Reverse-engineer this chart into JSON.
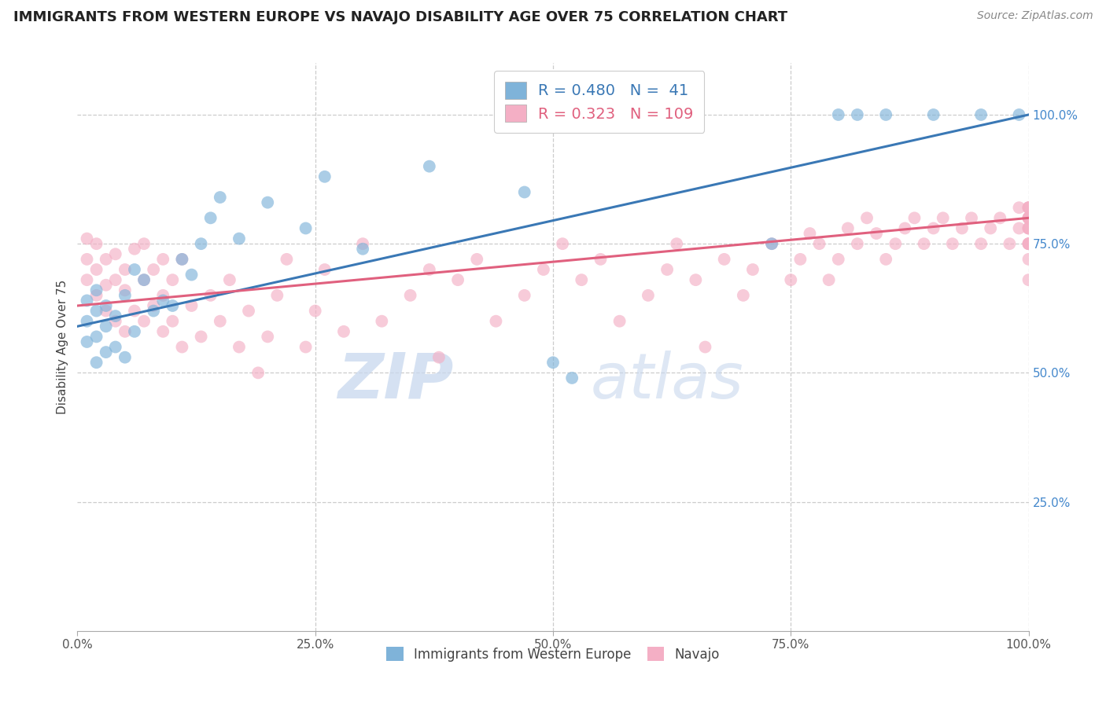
{
  "title": "IMMIGRANTS FROM WESTERN EUROPE VS NAVAJO DISABILITY AGE OVER 75 CORRELATION CHART",
  "source_text": "Source: ZipAtlas.com",
  "ylabel": "Disability Age Over 75",
  "xlim": [
    0,
    100
  ],
  "ylim": [
    0,
    110
  ],
  "xtick_labels": [
    "0.0%",
    "25.0%",
    "50.0%",
    "75.0%",
    "100.0%"
  ],
  "xtick_vals": [
    0,
    25,
    50,
    75,
    100
  ],
  "ytick_labels": [
    "25.0%",
    "50.0%",
    "75.0%",
    "100.0%"
  ],
  "ytick_vals": [
    25,
    50,
    75,
    100
  ],
  "blue_R": 0.48,
  "blue_N": 41,
  "pink_R": 0.323,
  "pink_N": 109,
  "blue_color": "#7fb3d9",
  "pink_color": "#f4afc5",
  "blue_line_color": "#3a78b5",
  "pink_line_color": "#e0607e",
  "legend_label_blue": "Immigrants from Western Europe",
  "legend_label_pink": "Navajo",
  "watermark_zip": "ZIP",
  "watermark_atlas": "atlas",
  "grid_color": "#cccccc",
  "blue_x": [
    1,
    1,
    1,
    2,
    2,
    2,
    2,
    3,
    3,
    3,
    4,
    4,
    5,
    5,
    6,
    6,
    7,
    8,
    9,
    10,
    11,
    12,
    13,
    14,
    15,
    17,
    20,
    24,
    26,
    30,
    37,
    47,
    50,
    52,
    73,
    80,
    82,
    85,
    90,
    95,
    99
  ],
  "blue_y": [
    56,
    60,
    64,
    52,
    57,
    62,
    66,
    54,
    59,
    63,
    55,
    61,
    53,
    65,
    58,
    70,
    68,
    62,
    64,
    63,
    72,
    69,
    75,
    80,
    84,
    76,
    83,
    78,
    88,
    74,
    90,
    85,
    52,
    49,
    75,
    100,
    100,
    100,
    100,
    100,
    100
  ],
  "pink_x": [
    1,
    1,
    1,
    2,
    2,
    2,
    3,
    3,
    3,
    4,
    4,
    4,
    5,
    5,
    5,
    6,
    6,
    7,
    7,
    7,
    8,
    8,
    9,
    9,
    9,
    10,
    10,
    11,
    11,
    12,
    13,
    14,
    15,
    16,
    17,
    18,
    19,
    20,
    21,
    22,
    24,
    25,
    26,
    28,
    30,
    32,
    35,
    37,
    38,
    40,
    42,
    44,
    47,
    49,
    51,
    53,
    55,
    57,
    60,
    62,
    63,
    65,
    66,
    68,
    70,
    71,
    73,
    75,
    76,
    77,
    78,
    79,
    80,
    81,
    82,
    83,
    84,
    85,
    86,
    87,
    88,
    89,
    90,
    91,
    92,
    93,
    94,
    95,
    96,
    97,
    98,
    99,
    99,
    100,
    100,
    100,
    100,
    100,
    100,
    100,
    100,
    100,
    100,
    100,
    100,
    100,
    100,
    100,
    100
  ],
  "pink_y": [
    68,
    72,
    76,
    65,
    70,
    75,
    62,
    67,
    72,
    60,
    68,
    73,
    58,
    66,
    70,
    62,
    74,
    60,
    68,
    75,
    63,
    70,
    58,
    65,
    72,
    60,
    68,
    55,
    72,
    63,
    57,
    65,
    60,
    68,
    55,
    62,
    50,
    57,
    65,
    72,
    55,
    62,
    70,
    58,
    75,
    60,
    65,
    70,
    53,
    68,
    72,
    60,
    65,
    70,
    75,
    68,
    72,
    60,
    65,
    70,
    75,
    68,
    55,
    72,
    65,
    70,
    75,
    68,
    72,
    77,
    75,
    68,
    72,
    78,
    75,
    80,
    77,
    72,
    75,
    78,
    80,
    75,
    78,
    80,
    75,
    78,
    80,
    75,
    78,
    80,
    75,
    78,
    82,
    80,
    75,
    78,
    80,
    82,
    75,
    78,
    80,
    82,
    75,
    68,
    72,
    80,
    82,
    75,
    78
  ],
  "blue_line_x0": 0,
  "blue_line_y0": 59,
  "blue_line_x1": 100,
  "blue_line_y1": 100,
  "pink_line_x0": 0,
  "pink_line_y0": 63,
  "pink_line_x1": 100,
  "pink_line_y1": 80
}
